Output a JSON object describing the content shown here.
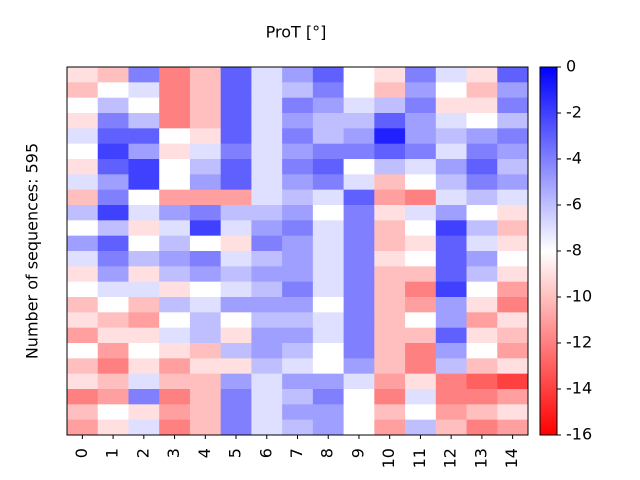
{
  "chart_data": {
    "type": "heatmap",
    "title": "ProT [°]",
    "ylabel": "Number of sequences: 595",
    "categories": [
      "0",
      "1",
      "2",
      "3",
      "4",
      "5",
      "6",
      "7",
      "8",
      "9",
      "10",
      "11",
      "12",
      "13",
      "14"
    ],
    "values": [
      [
        -9,
        -10,
        -4,
        -12,
        -10,
        -3,
        -7,
        -5,
        -3,
        -8,
        -9,
        -4,
        -7,
        -9,
        -3
      ],
      [
        -10,
        -8,
        -7,
        -12,
        -10,
        -3,
        -7,
        -6,
        -4,
        -8,
        -10,
        -5,
        -8,
        -10,
        -5
      ],
      [
        -8,
        -6,
        -8,
        -12,
        -10,
        -3,
        -7,
        -4,
        -5,
        -7,
        -6,
        -4,
        -9,
        -9,
        -4
      ],
      [
        -9,
        -4,
        -6,
        -12,
        -10,
        -3,
        -7,
        -5,
        -6,
        -6,
        -3,
        -5,
        -7,
        -8,
        -6
      ],
      [
        -7,
        -3,
        -3,
        -8,
        -9,
        -3,
        -7,
        -4,
        -6,
        -5,
        -1,
        -5,
        -6,
        -5,
        -4
      ],
      [
        -8,
        -2,
        -5,
        -9,
        -7,
        -4,
        -7,
        -5,
        -4,
        -4,
        -3,
        -4,
        -7,
        -4,
        -5
      ],
      [
        -9,
        -3,
        -2,
        -8,
        -6,
        -3,
        -7,
        -4,
        -3,
        -8,
        -6,
        -7,
        -5,
        -3,
        -6
      ],
      [
        -7,
        -5,
        -2,
        -8,
        -5,
        -3,
        -7,
        -5,
        -4,
        -7,
        -10,
        -8,
        -6,
        -4,
        -5
      ],
      [
        -10,
        -4,
        -8,
        -11,
        -11,
        -11,
        -7,
        -6,
        -7,
        -3,
        -11,
        -12,
        -7,
        -6,
        -7
      ],
      [
        -6,
        -2,
        -7,
        -5,
        -4,
        -6,
        -6,
        -5,
        -8,
        -4,
        -9,
        -7,
        -5,
        -8,
        -9
      ],
      [
        -8,
        -6,
        -9,
        -7,
        -2,
        -7,
        -5,
        -4,
        -7,
        -4,
        -10,
        -8,
        -2,
        -6,
        -10
      ],
      [
        -5,
        -3,
        -8,
        -6,
        -8,
        -9,
        -4,
        -5,
        -7,
        -4,
        -10,
        -9,
        -3,
        -7,
        -9
      ],
      [
        -7,
        -4,
        -6,
        -5,
        -4,
        -7,
        -6,
        -5,
        -7,
        -4,
        -9,
        -8,
        -3,
        -5,
        -8
      ],
      [
        -9,
        -5,
        -9,
        -6,
        -5,
        -6,
        -5,
        -5,
        -7,
        -4,
        -10,
        -10,
        -3,
        -6,
        -9
      ],
      [
        -8,
        -7,
        -7,
        -9,
        -8,
        -7,
        -6,
        -4,
        -7,
        -4,
        -10,
        -12,
        -2,
        -8,
        -11
      ],
      [
        -10,
        -8,
        -10,
        -6,
        -7,
        -5,
        -5,
        -5,
        -8,
        -4,
        -10,
        -11,
        -5,
        -9,
        -12
      ],
      [
        -9,
        -10,
        -11,
        -8,
        -6,
        -8,
        -6,
        -6,
        -7,
        -4,
        -10,
        -8,
        -5,
        -11,
        -9
      ],
      [
        -11,
        -9,
        -9,
        -7,
        -6,
        -9,
        -5,
        -5,
        -7,
        -4,
        -10,
        -10,
        -3,
        -9,
        -10
      ],
      [
        -8,
        -11,
        -8,
        -9,
        -10,
        -6,
        -5,
        -6,
        -8,
        -4,
        -10,
        -12,
        -5,
        -8,
        -11
      ],
      [
        -10,
        -12,
        -9,
        -11,
        -9,
        -9,
        -6,
        -7,
        -8,
        -5,
        -10,
        -12,
        -6,
        -10,
        -9
      ],
      [
        -9,
        -10,
        -7,
        -10,
        -10,
        -5,
        -7,
        -5,
        -5,
        -7,
        -11,
        -9,
        -12,
        -13,
        -14
      ],
      [
        -12,
        -11,
        -4,
        -12,
        -10,
        -4,
        -7,
        -6,
        -4,
        -8,
        -12,
        -7,
        -12,
        -12,
        -11
      ],
      [
        -10,
        -8,
        -9,
        -11,
        -10,
        -4,
        -7,
        -5,
        -5,
        -8,
        -10,
        -8,
        -11,
        -10,
        -9
      ],
      [
        -11,
        -9,
        -7,
        -12,
        -10,
        -4,
        -7,
        -6,
        -5,
        -8,
        -11,
        -6,
        -10,
        -12,
        -11
      ]
    ],
    "colors": [
      "#ff0000",
      "#ffffff",
      "#0000ff"
    ],
    "clim": [
      -16,
      0
    ],
    "cticks": [
      0,
      -2,
      -4,
      -6,
      -8,
      -10,
      -12,
      -14,
      -16
    ]
  }
}
